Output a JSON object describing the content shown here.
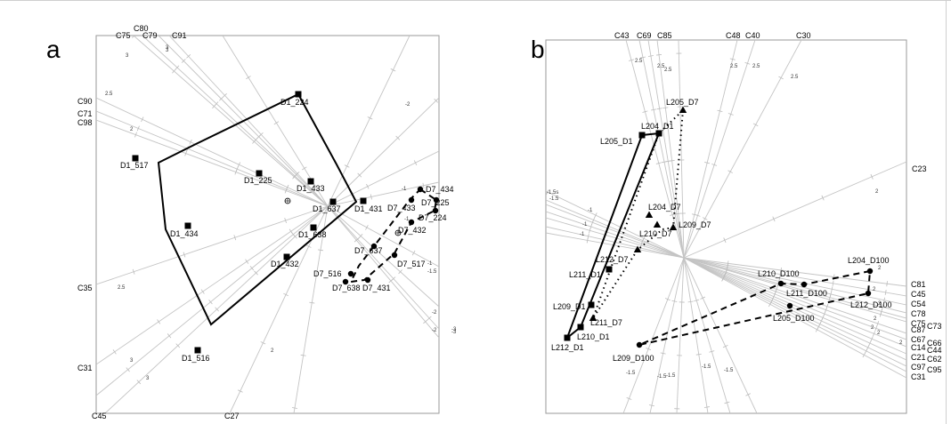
{
  "panels": [
    {
      "id": "a",
      "label": "a",
      "axis_labels": [
        "C75",
        "C80",
        "C79",
        "C91",
        "C90",
        "C71",
        "C98",
        "C35",
        "C31",
        "C45",
        "C27"
      ],
      "tick_labels": [
        "3",
        "3",
        "3",
        "2.5",
        "2",
        "-2",
        "-1",
        "-1",
        "-1",
        "-1.5",
        "-2",
        "-2",
        "-3",
        "-3",
        "2.5",
        "3",
        "3",
        "2"
      ],
      "groups": [
        {
          "name": "D1",
          "marker": "square",
          "hull": "solid",
          "points": [
            "D1_224",
            "D1_517",
            "D1_225",
            "D1_433",
            "D1_637",
            "D1_431",
            "D1_434",
            "D1_638",
            "D1_432",
            "D1_516"
          ]
        },
        {
          "name": "D7",
          "marker": "circle",
          "hull": "dashed",
          "points": [
            "D7_434",
            "D7_433",
            "D7_225",
            "D7_224",
            "D7_432",
            "D7_637",
            "D7_517",
            "D7_516",
            "D7_638",
            "D7_431"
          ]
        }
      ]
    },
    {
      "id": "b",
      "label": "b",
      "axis_labels": [
        "C43",
        "C69",
        "C85",
        "C48",
        "C40",
        "C30",
        "C23",
        "C81",
        "C45",
        "C54",
        "C78",
        "C75",
        "C73",
        "C87",
        "C67",
        "C66",
        "C14",
        "C44",
        "C21",
        "C62",
        "C97",
        "C95",
        "C31"
      ],
      "tick_labels": [
        "2.5",
        "2.5",
        "2.5",
        "2.5",
        "2.5",
        "2.5",
        "2",
        "-1.5s",
        "-1.5",
        "-1",
        "-1",
        "-1",
        "2",
        "2",
        "2",
        "2",
        "2",
        "2",
        "2",
        "-1.5",
        "-1.5",
        "-1.5",
        "-1.5",
        "-1.5"
      ],
      "groups": [
        {
          "name": "D1",
          "marker": "square",
          "hull": "solid",
          "points": [
            "L205_D1",
            "L204_D1",
            "L211_D1",
            "L209_D1",
            "L210_D1",
            "L212_D1"
          ]
        },
        {
          "name": "D7",
          "marker": "triangle",
          "hull": "dotted",
          "points": [
            "L205_D7",
            "L204_D7",
            "L210_D7",
            "L209_D7",
            "L212_D7",
            "L211_D7"
          ]
        },
        {
          "name": "D100",
          "marker": "circle",
          "hull": "dashed",
          "points": [
            "L204_D100",
            "L210_D100",
            "L211_D100",
            "L212_D100",
            "L205_D100",
            "L209_D100"
          ]
        }
      ]
    }
  ]
}
